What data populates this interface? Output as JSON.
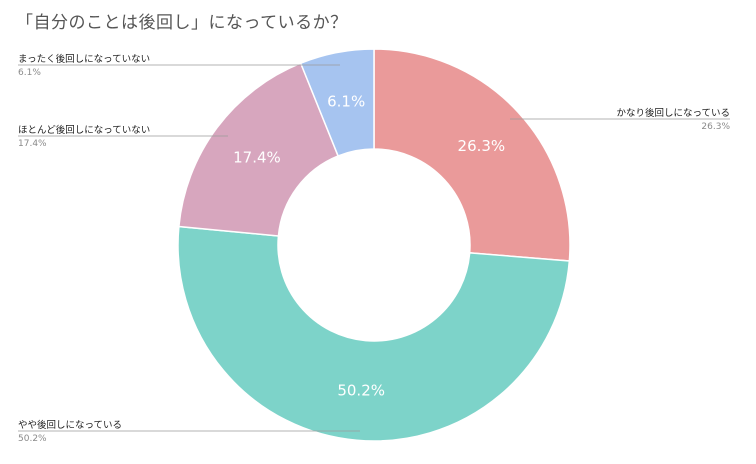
{
  "chart_data": {
    "type": "pie",
    "donut": true,
    "title": "「自分のことは後回し」になっているか？",
    "slices": [
      {
        "label": "かなり後回しになっている",
        "value": 26.3,
        "display": "26.3%",
        "color": "#EA9A9A"
      },
      {
        "label": "やや後回しになっている",
        "value": 50.2,
        "display": "50.2%",
        "color": "#7DD3C9"
      },
      {
        "label": "ほとんど後回しになっていない",
        "value": 17.4,
        "display": "17.4%",
        "color": "#D7A6BE"
      },
      {
        "label": "まったく後回しになっていない",
        "value": 6.1,
        "display": "6.1%",
        "color": "#A6C4F0"
      }
    ],
    "start": "top, clockwise",
    "legend": "leader-line labels outside the ring"
  }
}
